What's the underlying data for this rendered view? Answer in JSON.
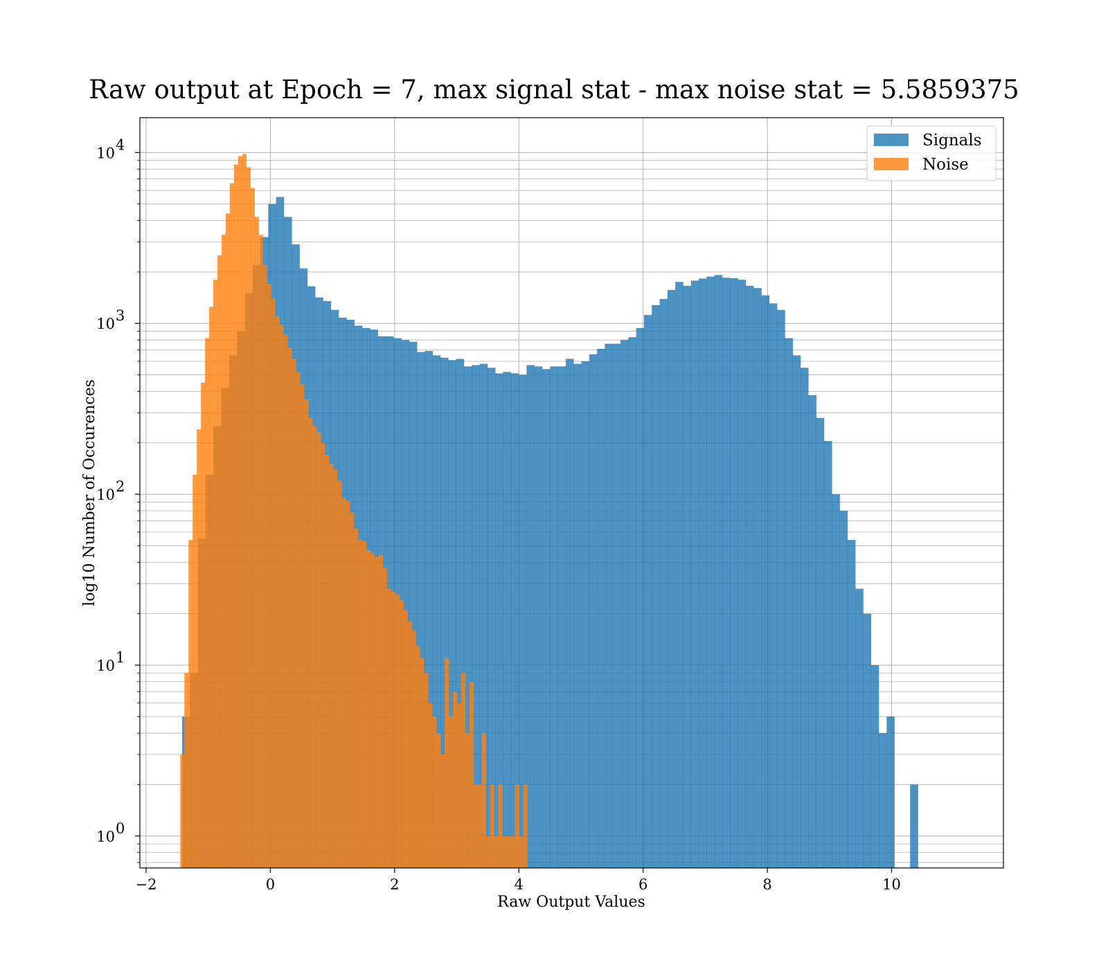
{
  "chart_data": {
    "type": "bar",
    "title": "Raw output at Epoch = 7, max signal stat - max noise stat = 5.5859375",
    "xlabel": "Raw Output Values",
    "ylabel": "log10 Number of Occurences",
    "xlim": [
      -2.1,
      11.8
    ],
    "ylim": [
      0.65,
      16000
    ],
    "yscale": "log",
    "grid": true,
    "legend_position": "top-right",
    "x_ticks": [
      -2,
      0,
      2,
      4,
      6,
      8,
      10
    ],
    "x_tick_labels": [
      "−2",
      "0",
      "2",
      "4",
      "6",
      "8",
      "10"
    ],
    "y_ticks": [
      1,
      10,
      100,
      1000,
      10000
    ],
    "y_tick_bases": [
      "10",
      "10",
      "10",
      "10",
      "10"
    ],
    "y_tick_exponents": [
      "0",
      "1",
      "2",
      "3",
      "4"
    ],
    "series": [
      {
        "name": "Signals",
        "color": "#1f77b4",
        "opacity": 0.8,
        "bin_start": -1.42,
        "bin_width": 0.126,
        "values": [
          5,
          9,
          55,
          130,
          250,
          420,
          650,
          900,
          1500,
          2200,
          3200,
          5000,
          5500,
          4200,
          2900,
          2100,
          1650,
          1420,
          1350,
          1200,
          1080,
          1050,
          970,
          940,
          920,
          840,
          840,
          820,
          800,
          780,
          680,
          690,
          650,
          630,
          610,
          620,
          560,
          570,
          580,
          550,
          510,
          520,
          510,
          500,
          570,
          560,
          540,
          560,
          560,
          620,
          580,
          600,
          660,
          710,
          760,
          760,
          800,
          830,
          940,
          1120,
          1280,
          1390,
          1570,
          1750,
          1660,
          1780,
          1830,
          1880,
          1920,
          1850,
          1840,
          1800,
          1660,
          1610,
          1460,
          1310,
          1200,
          820,
          650,
          550,
          380,
          280,
          205,
          100,
          80,
          54,
          28,
          20,
          10,
          4,
          5,
          0,
          0,
          2
        ]
      },
      {
        "name": "Noise",
        "color": "#ff7f0e",
        "opacity": 0.8,
        "bin_start": -1.45,
        "bin_width": 0.0665,
        "values": [
          3,
          9,
          54,
          130,
          240,
          450,
          820,
          1250,
          1800,
          2500,
          3300,
          4400,
          6600,
          8500,
          9500,
          9800,
          8200,
          6200,
          4200,
          3300,
          2200,
          1700,
          1400,
          1100,
          980,
          860,
          720,
          620,
          520,
          440,
          360,
          280,
          250,
          230,
          200,
          170,
          150,
          140,
          120,
          95,
          92,
          78,
          63,
          54,
          53,
          47,
          45,
          43,
          44,
          37,
          28,
          27,
          26,
          24,
          21,
          18,
          16,
          13,
          11,
          9,
          6,
          5,
          4,
          3,
          11,
          5,
          7,
          6,
          9,
          4,
          8,
          2,
          2,
          4,
          1,
          2,
          1,
          2,
          1,
          1,
          1,
          2,
          1,
          2
        ]
      }
    ]
  },
  "legend": {
    "signals_label": "Signals",
    "noise_label": "Noise"
  }
}
